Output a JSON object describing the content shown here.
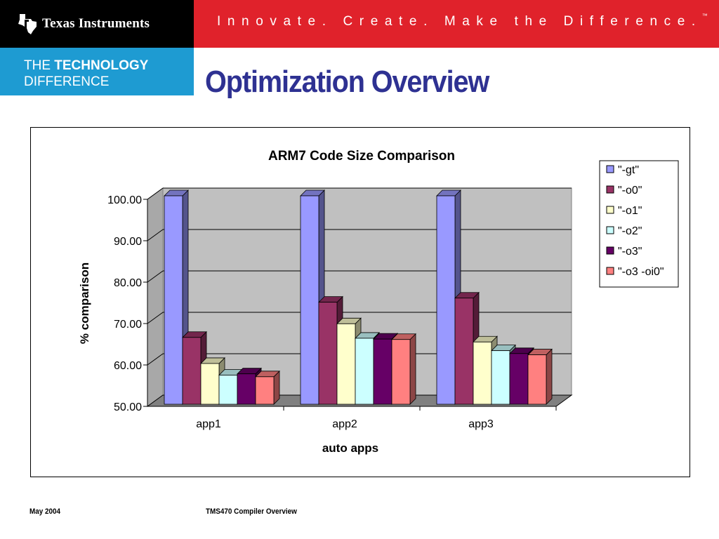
{
  "header": {
    "company": "Texas Instruments",
    "tagline": "Innovate. Create. Make the Difference.",
    "tagline_mark": "™",
    "brand_line1_light": "THE ",
    "brand_line1_bold": "TECHNOLOGY",
    "brand_line2": "DIFFERENCE",
    "colors": {
      "black": "#000000",
      "red": "#e0222b",
      "blue": "#1e9bd2"
    }
  },
  "page": {
    "title": "Optimization Overview"
  },
  "footer": {
    "date": "May 2004",
    "title": "TMS470 Compiler Overview"
  },
  "chart_data": {
    "type": "bar",
    "title": "ARM7 Code Size Comparison",
    "xlabel": "auto apps",
    "ylabel": "% comparison",
    "categories": [
      "app1",
      "app2",
      "app3"
    ],
    "ylim": [
      50,
      100
    ],
    "yticks": [
      "50.00",
      "60.00",
      "70.00",
      "80.00",
      "90.00",
      "100.00"
    ],
    "grid": true,
    "legend": "right",
    "series": [
      {
        "name": "\"-gt\"",
        "color": "#9999ff",
        "values": [
          100,
          100,
          100
        ]
      },
      {
        "name": "\"-o0\"",
        "color": "#993366",
        "values": [
          65.8,
          74.3,
          75.3
        ]
      },
      {
        "name": "\"-o1\"",
        "color": "#ffffcc",
        "values": [
          59.5,
          69.1,
          64.7
        ]
      },
      {
        "name": "\"-o2\"",
        "color": "#ccffff",
        "values": [
          56.7,
          65.6,
          62.6
        ]
      },
      {
        "name": "\"-o3\"",
        "color": "#660066",
        "values": [
          57.0,
          65.4,
          61.9
        ]
      },
      {
        "name": "\"-o3 -oi0\"",
        "color": "#ff8080",
        "values": [
          56.3,
          65.3,
          61.6
        ]
      }
    ]
  }
}
